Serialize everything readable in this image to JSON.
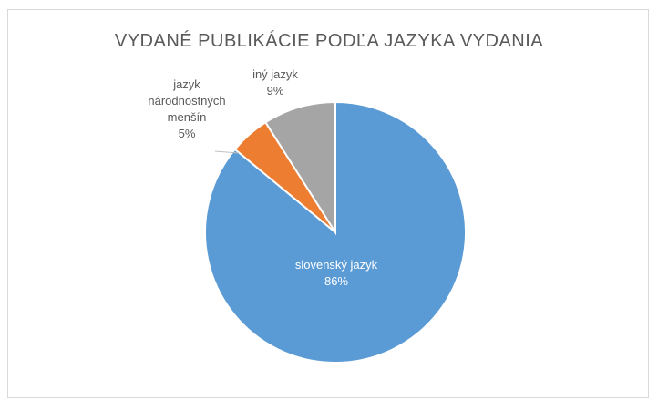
{
  "chart_data": {
    "type": "pie",
    "title": "VYDANÉ PUBLIKÁCIE PODĽA JAZYKA VYDANIA",
    "slices": [
      {
        "label_lines": [
          "slovenský jazyk"
        ],
        "value": 86,
        "value_label": "86%",
        "color": "#5b9bd5",
        "label_color": "#ffffff"
      },
      {
        "label_lines": [
          "jazyk",
          "národnostných",
          "menšín"
        ],
        "value": 5,
        "value_label": "5%",
        "color": "#ed7d31",
        "label_color": "#595959"
      },
      {
        "label_lines": [
          "iný jazyk"
        ],
        "value": 9,
        "value_label": "9%",
        "color": "#a5a5a5",
        "label_color": "#595959"
      }
    ],
    "legend": "none"
  }
}
